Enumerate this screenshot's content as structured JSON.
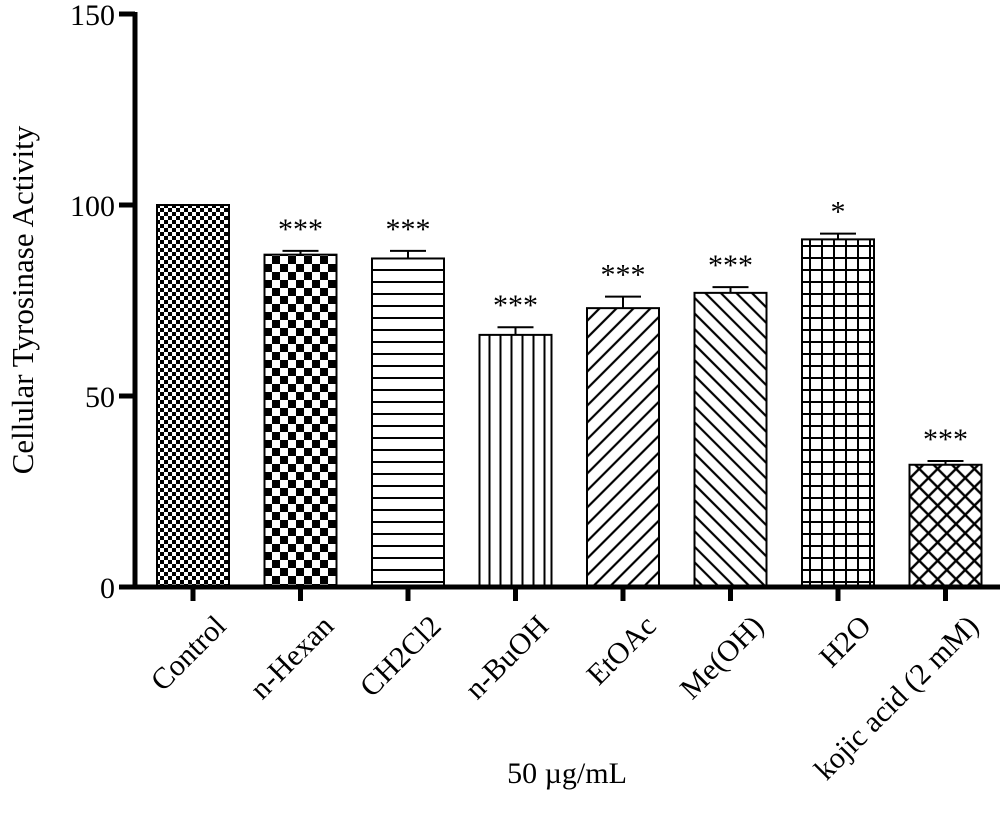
{
  "chart_data": {
    "type": "bar",
    "title": "",
    "xlabel": "50 µg/mL",
    "ylabel": "Cellular Tyrosinase Activity",
    "ylim": [
      0,
      150
    ],
    "yticks": [
      0,
      50,
      100,
      150
    ],
    "grid": false,
    "legend": "none",
    "categories": [
      "Control",
      "n-Hexan",
      "CH2Cl2",
      "n-BuOH",
      "EtOAc",
      "Me(OH)",
      "H2O",
      "kojic acid (2 mM)"
    ],
    "values": [
      100,
      87,
      86,
      66,
      73,
      77,
      91,
      32
    ],
    "errors": [
      0,
      1,
      2,
      2,
      3,
      1.5,
      1.5,
      1
    ],
    "significance": [
      "",
      "***",
      "***",
      "***",
      "***",
      "***",
      "*",
      "***"
    ],
    "patterns": [
      "fine-checker",
      "large-checker",
      "horizontal-lines",
      "vertical-lines",
      "diagonal-right",
      "diagonal-left",
      "grid",
      "diamond-hatch"
    ]
  }
}
